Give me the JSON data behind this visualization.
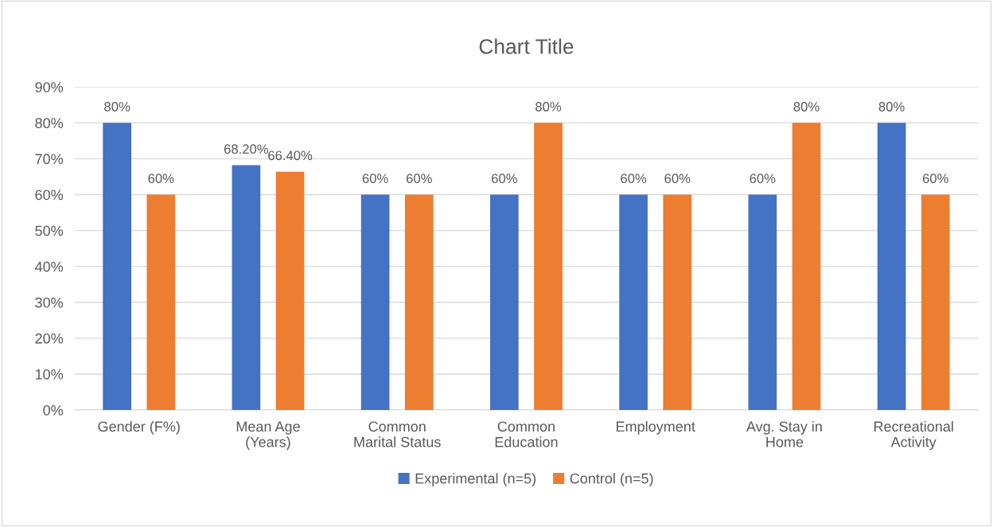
{
  "chart_data": {
    "type": "bar",
    "title": "Chart Title",
    "categories": [
      "Gender (F%)",
      "Mean Age\n(Years)",
      "Common\nMarital Status",
      "Common\nEducation",
      "Employment",
      "Avg. Stay in\nHome",
      "Recreational\nActivity"
    ],
    "series": [
      {
        "name": "Experimental (n=5)",
        "color": "#4472c4",
        "values": [
          80,
          68.2,
          60,
          60,
          60,
          60,
          80
        ],
        "value_labels": [
          "80%",
          "68.20%",
          "60%",
          "60%",
          "60%",
          "60%",
          "80%"
        ]
      },
      {
        "name": "Control (n=5)",
        "color": "#ed7d31",
        "values": [
          60,
          66.4,
          60,
          80,
          60,
          80,
          60
        ],
        "value_labels": [
          "60%",
          "66.40%",
          "60%",
          "80%",
          "60%",
          "80%",
          "60%"
        ]
      }
    ],
    "ylim": [
      0,
      90
    ],
    "yticks": [
      {
        "value": 0,
        "label": "0%"
      },
      {
        "value": 10,
        "label": "10%"
      },
      {
        "value": 20,
        "label": "20%"
      },
      {
        "value": 30,
        "label": "30%"
      },
      {
        "value": 40,
        "label": "40%"
      },
      {
        "value": 50,
        "label": "50%"
      },
      {
        "value": 60,
        "label": "60%"
      },
      {
        "value": 70,
        "label": "70%"
      },
      {
        "value": 80,
        "label": "80%"
      },
      {
        "value": 90,
        "label": "90%"
      }
    ],
    "grid": "y",
    "legend": "bottom"
  }
}
